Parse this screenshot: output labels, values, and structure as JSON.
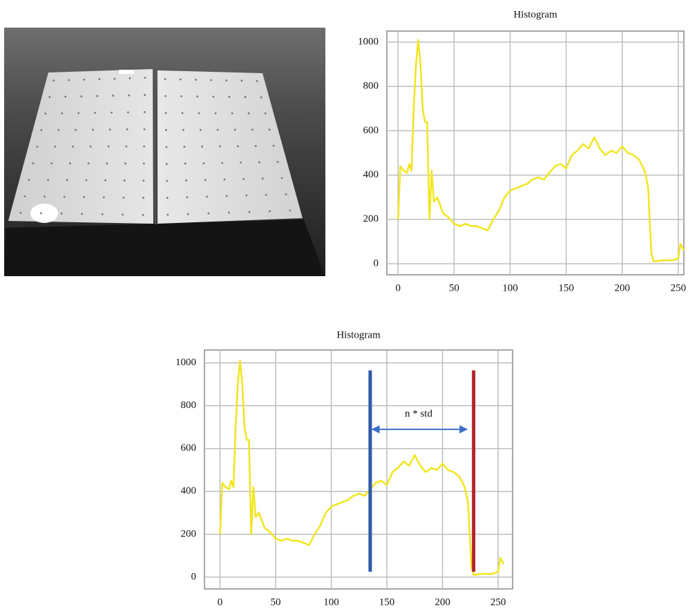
{
  "chart_data": [
    {
      "type": "line",
      "title": "Histogram",
      "x": [
        0,
        2,
        5,
        8,
        10,
        12,
        14,
        16,
        18,
        20,
        22,
        24,
        26,
        28,
        30,
        32,
        35,
        40,
        45,
        50,
        55,
        60,
        65,
        70,
        75,
        80,
        85,
        90,
        95,
        100,
        105,
        110,
        115,
        120,
        125,
        130,
        135,
        140,
        145,
        150,
        155,
        160,
        165,
        170,
        175,
        180,
        185,
        190,
        195,
        200,
        205,
        210,
        215,
        220,
        223,
        226,
        228,
        235,
        240,
        245,
        250,
        252,
        255
      ],
      "values": [
        200,
        440,
        420,
        410,
        450,
        420,
        700,
        900,
        1010,
        900,
        700,
        640,
        640,
        200,
        420,
        280,
        300,
        230,
        210,
        180,
        170,
        180,
        170,
        170,
        160,
        150,
        200,
        240,
        300,
        330,
        340,
        350,
        360,
        380,
        390,
        380,
        410,
        440,
        450,
        430,
        490,
        510,
        540,
        520,
        570,
        520,
        490,
        510,
        500,
        530,
        500,
        490,
        470,
        420,
        350,
        50,
        10,
        15,
        15,
        15,
        25,
        90,
        60
      ],
      "color": "#f2e51c",
      "xlim": [
        -10,
        255
      ],
      "ylim": [
        -50,
        1050
      ],
      "xticks": [
        0,
        50,
        100,
        150,
        200,
        250
      ],
      "yticks": [
        0,
        200,
        400,
        600,
        800,
        1000
      ],
      "grid": true
    },
    {
      "type": "line",
      "title": "Histogram",
      "x": [
        0,
        2,
        5,
        8,
        10,
        12,
        14,
        16,
        18,
        20,
        22,
        24,
        26,
        28,
        30,
        32,
        35,
        40,
        45,
        50,
        55,
        60,
        65,
        70,
        75,
        80,
        85,
        90,
        95,
        100,
        105,
        110,
        115,
        120,
        125,
        130,
        135,
        140,
        145,
        150,
        155,
        160,
        165,
        170,
        175,
        180,
        185,
        190,
        195,
        200,
        205,
        210,
        215,
        220,
        223,
        226,
        228,
        235,
        240,
        245,
        250,
        252,
        255
      ],
      "values": [
        200,
        440,
        420,
        410,
        450,
        420,
        700,
        900,
        1010,
        900,
        700,
        640,
        640,
        200,
        420,
        280,
        300,
        230,
        210,
        180,
        170,
        180,
        170,
        170,
        160,
        150,
        200,
        240,
        300,
        330,
        340,
        350,
        360,
        380,
        390,
        380,
        410,
        440,
        450,
        430,
        490,
        510,
        540,
        520,
        570,
        520,
        490,
        510,
        500,
        530,
        500,
        490,
        470,
        420,
        350,
        50,
        10,
        15,
        15,
        15,
        25,
        90,
        60
      ],
      "color": "#f2e51c",
      "xlim": [
        -14,
        263
      ],
      "ylim": [
        -55,
        1060
      ],
      "xticks": [
        0,
        50,
        100,
        150,
        200,
        250
      ],
      "yticks": [
        0,
        200,
        400,
        600,
        800,
        1000
      ],
      "grid": true,
      "markers": [
        {
          "x": 135,
          "ymin": 25,
          "ymax": 965,
          "color": "#2e5aa8"
        },
        {
          "x": 228,
          "ymin": 25,
          "ymax": 965,
          "color": "#b3262b"
        }
      ],
      "annotation": {
        "text": "n * std",
        "x": [
          135,
          222
        ],
        "y": 690,
        "color": "#3a6fc4"
      }
    }
  ]
}
